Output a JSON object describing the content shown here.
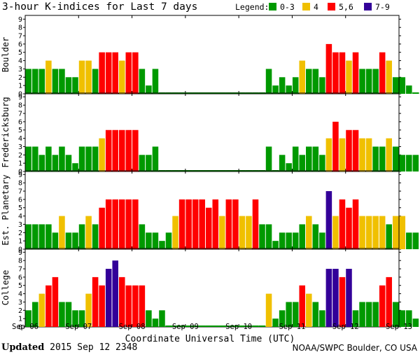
{
  "title": "3-hour K-indices for Last 7 days",
  "legend": {
    "label": "Legend:",
    "items": [
      {
        "label": "0-3",
        "color": "#009900"
      },
      {
        "label": "4",
        "color": "#f0c000"
      },
      {
        "label": "5,6",
        "color": "#ff0000"
      },
      {
        "label": "7-9",
        "color": "#330099"
      }
    ]
  },
  "footer": {
    "updated_label": "Updated",
    "timestamp": "2015 Sep 12 2348",
    "source": "NOAA/SWPC Boulder, CO USA"
  },
  "chart_data": {
    "type": "bar",
    "xlabel": "Coordinate Universal Time (UTC)",
    "x_ticks": [
      "Sep 06",
      "Sep 07",
      "Sep 08",
      "Sep 09",
      "Sep 10",
      "Sep 11",
      "Sep 12",
      "Sep 13"
    ],
    "ylim": [
      0,
      9
    ],
    "y_ticks": [
      0,
      1,
      2,
      3,
      4,
      5,
      6,
      7,
      8,
      9
    ],
    "bins_per_day": 8,
    "missing_value_note": "0 values in no-data gaps drawn as baseline only",
    "series": [
      {
        "name": "Boulder",
        "values": [
          3,
          3,
          3,
          4,
          3,
          3,
          2,
          2,
          4,
          4,
          3,
          5,
          5,
          5,
          4,
          5,
          5,
          3,
          1,
          3,
          0,
          0,
          0,
          0,
          0,
          0,
          0,
          0,
          0,
          0,
          0,
          0,
          0,
          0,
          0,
          0,
          3,
          1,
          2,
          1,
          2,
          4,
          3,
          3,
          2,
          6,
          5,
          5,
          4,
          5,
          3,
          3,
          3,
          5,
          4,
          2,
          2,
          1,
          0
        ]
      },
      {
        "name": "Fredericksburg",
        "values": [
          3,
          3,
          2,
          3,
          2,
          3,
          2,
          1,
          3,
          3,
          3,
          4,
          5,
          5,
          5,
          5,
          5,
          2,
          2,
          3,
          0,
          0,
          0,
          0,
          0,
          0,
          0,
          0,
          0,
          0,
          0,
          0,
          0,
          0,
          0,
          0,
          3,
          0,
          2,
          1,
          3,
          2,
          3,
          3,
          2,
          4,
          6,
          4,
          5,
          5,
          4,
          4,
          3,
          3,
          4,
          3,
          2,
          2,
          2
        ]
      },
      {
        "name": "Est. Planetary",
        "values": [
          3,
          3,
          3,
          3,
          2,
          4,
          2,
          2,
          3,
          4,
          3,
          5,
          6,
          6,
          6,
          6,
          6,
          3,
          2,
          2,
          1,
          2,
          4,
          6,
          6,
          6,
          6,
          5,
          6,
          4,
          6,
          6,
          4,
          4,
          6,
          3,
          3,
          1,
          2,
          2,
          2,
          3,
          4,
          3,
          2,
          7,
          4,
          6,
          5,
          6,
          4,
          4,
          4,
          4,
          3,
          4,
          4,
          2,
          2
        ]
      },
      {
        "name": "College",
        "values": [
          2,
          3,
          4,
          5,
          6,
          3,
          3,
          2,
          2,
          4,
          6,
          5,
          7,
          8,
          6,
          5,
          5,
          5,
          2,
          1,
          2,
          0,
          0,
          0,
          0,
          0,
          0,
          0,
          0,
          0,
          0,
          0,
          0,
          0,
          0,
          0,
          4,
          1,
          2,
          3,
          3,
          5,
          4,
          3,
          2,
          7,
          7,
          6,
          7,
          2,
          3,
          3,
          3,
          5,
          6,
          3,
          2,
          2,
          1
        ]
      }
    ]
  }
}
